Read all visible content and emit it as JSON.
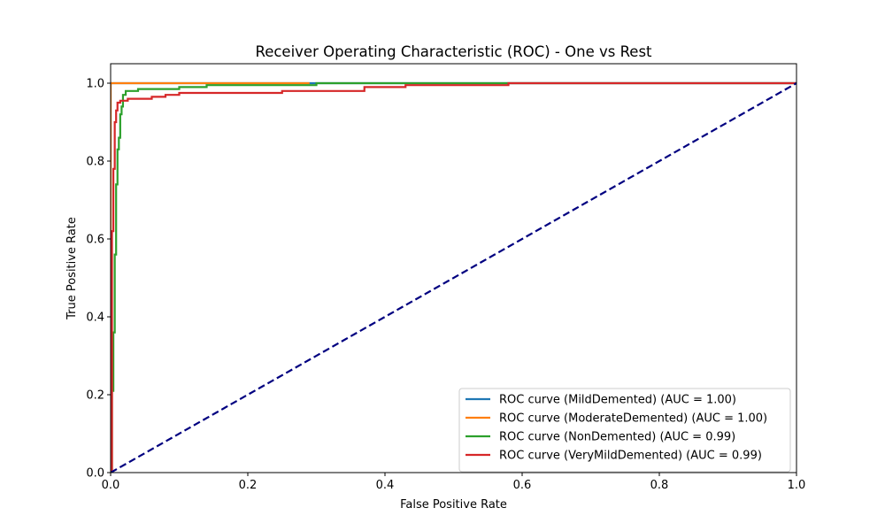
{
  "chart_data": {
    "type": "line",
    "title": "Receiver Operating Characteristic (ROC) - One vs Rest",
    "xlabel": "False Positive Rate",
    "ylabel": "True Positive Rate",
    "xlim": [
      0.0,
      1.0
    ],
    "ylim": [
      0.0,
      1.05
    ],
    "xticks": [
      "0.0",
      "0.2",
      "0.4",
      "0.6",
      "0.8",
      "1.0"
    ],
    "yticks": [
      "0.0",
      "0.2",
      "0.4",
      "0.6",
      "0.8",
      "1.0"
    ],
    "grid": false,
    "legend_position": "lower-right",
    "series": [
      {
        "name": "ROC curve (MildDemented) (AUC = 1.00)",
        "color": "#1f77b4",
        "x": [
          0.0,
          0.0,
          0.29,
          1.0
        ],
        "y": [
          0.0,
          1.0,
          1.0,
          1.0
        ]
      },
      {
        "name": "ROC curve (ModerateDemented) (AUC = 1.00)",
        "color": "#ff7f0e",
        "x": [
          0.0,
          0.0,
          0.29
        ],
        "y": [
          0.0,
          1.0,
          1.0
        ]
      },
      {
        "name": "ROC curve (NonDemented) (AUC = 0.99)",
        "color": "#2ca02c",
        "x": [
          0.0,
          0.002,
          0.002,
          0.004,
          0.004,
          0.006,
          0.006,
          0.008,
          0.008,
          0.01,
          0.01,
          0.012,
          0.012,
          0.014,
          0.014,
          0.016,
          0.016,
          0.018,
          0.018,
          0.022,
          0.022,
          0.04,
          0.04,
          0.1,
          0.1,
          0.14,
          0.14,
          0.3,
          0.3,
          0.59,
          0.59,
          1.0
        ],
        "y": [
          0.0,
          0.0,
          0.21,
          0.21,
          0.36,
          0.36,
          0.56,
          0.56,
          0.74,
          0.74,
          0.83,
          0.83,
          0.86,
          0.86,
          0.92,
          0.92,
          0.94,
          0.94,
          0.97,
          0.97,
          0.98,
          0.98,
          0.985,
          0.985,
          0.99,
          0.99,
          0.995,
          0.995,
          1.0,
          1.0,
          1.0,
          1.0
        ]
      },
      {
        "name": "ROC curve (VeryMildDemented) (AUC = 0.99)",
        "color": "#d62728",
        "x": [
          0.0,
          0.002,
          0.002,
          0.004,
          0.004,
          0.006,
          0.006,
          0.008,
          0.008,
          0.01,
          0.01,
          0.014,
          0.014,
          0.025,
          0.025,
          0.06,
          0.06,
          0.08,
          0.08,
          0.1,
          0.1,
          0.25,
          0.25,
          0.37,
          0.37,
          0.43,
          0.43,
          0.58,
          0.58,
          1.0
        ],
        "y": [
          0.0,
          0.0,
          0.62,
          0.62,
          0.78,
          0.78,
          0.9,
          0.9,
          0.93,
          0.93,
          0.95,
          0.95,
          0.955,
          0.955,
          0.96,
          0.96,
          0.965,
          0.965,
          0.97,
          0.97,
          0.975,
          0.975,
          0.98,
          0.98,
          0.99,
          0.99,
          0.995,
          0.995,
          1.0,
          1.0
        ]
      }
    ],
    "reference_line": {
      "color": "#000080",
      "dash": true,
      "x": [
        0.0,
        1.0
      ],
      "y": [
        0.0,
        1.0
      ]
    }
  }
}
